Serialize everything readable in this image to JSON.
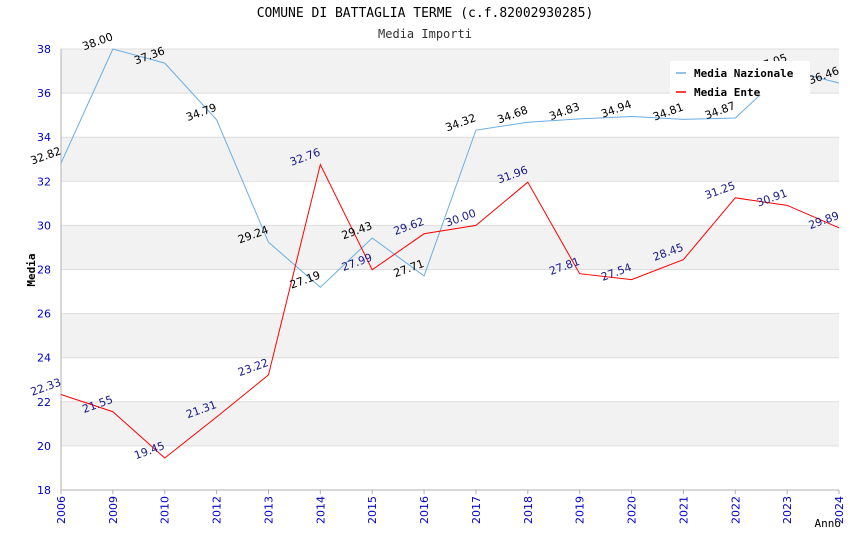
{
  "chart_data": {
    "type": "line",
    "title": "COMUNE DI BATTAGLIA TERME (c.f.82002930285)",
    "subtitle": "Media Importi",
    "xlabel": "Anno",
    "ylabel": "Media",
    "categories": [
      "2006",
      "2009",
      "2010",
      "2012",
      "2013",
      "2014",
      "2015",
      "2016",
      "2017",
      "2018",
      "2019",
      "2020",
      "2021",
      "2022",
      "2023",
      "2024"
    ],
    "ylim": [
      18,
      38
    ],
    "yticks": [
      18,
      20,
      22,
      24,
      26,
      28,
      30,
      32,
      34,
      36,
      38
    ],
    "grid": true,
    "legend_position": "top-right",
    "series": [
      {
        "name": "Media Nazionale",
        "color": "#6aaee6",
        "label_color": "#000000",
        "values": [
          32.82,
          38.0,
          37.36,
          34.79,
          29.24,
          27.19,
          29.43,
          27.71,
          34.32,
          34.68,
          34.83,
          34.94,
          34.81,
          34.87,
          37.05,
          36.46
        ]
      },
      {
        "name": "Media Ente",
        "color": "#ff0000",
        "label_color": "#1a1a8c",
        "values": [
          22.33,
          21.55,
          19.45,
          21.31,
          23.22,
          32.76,
          27.99,
          29.62,
          30.0,
          31.96,
          27.81,
          27.54,
          28.45,
          31.25,
          30.91,
          29.89
        ]
      }
    ]
  }
}
